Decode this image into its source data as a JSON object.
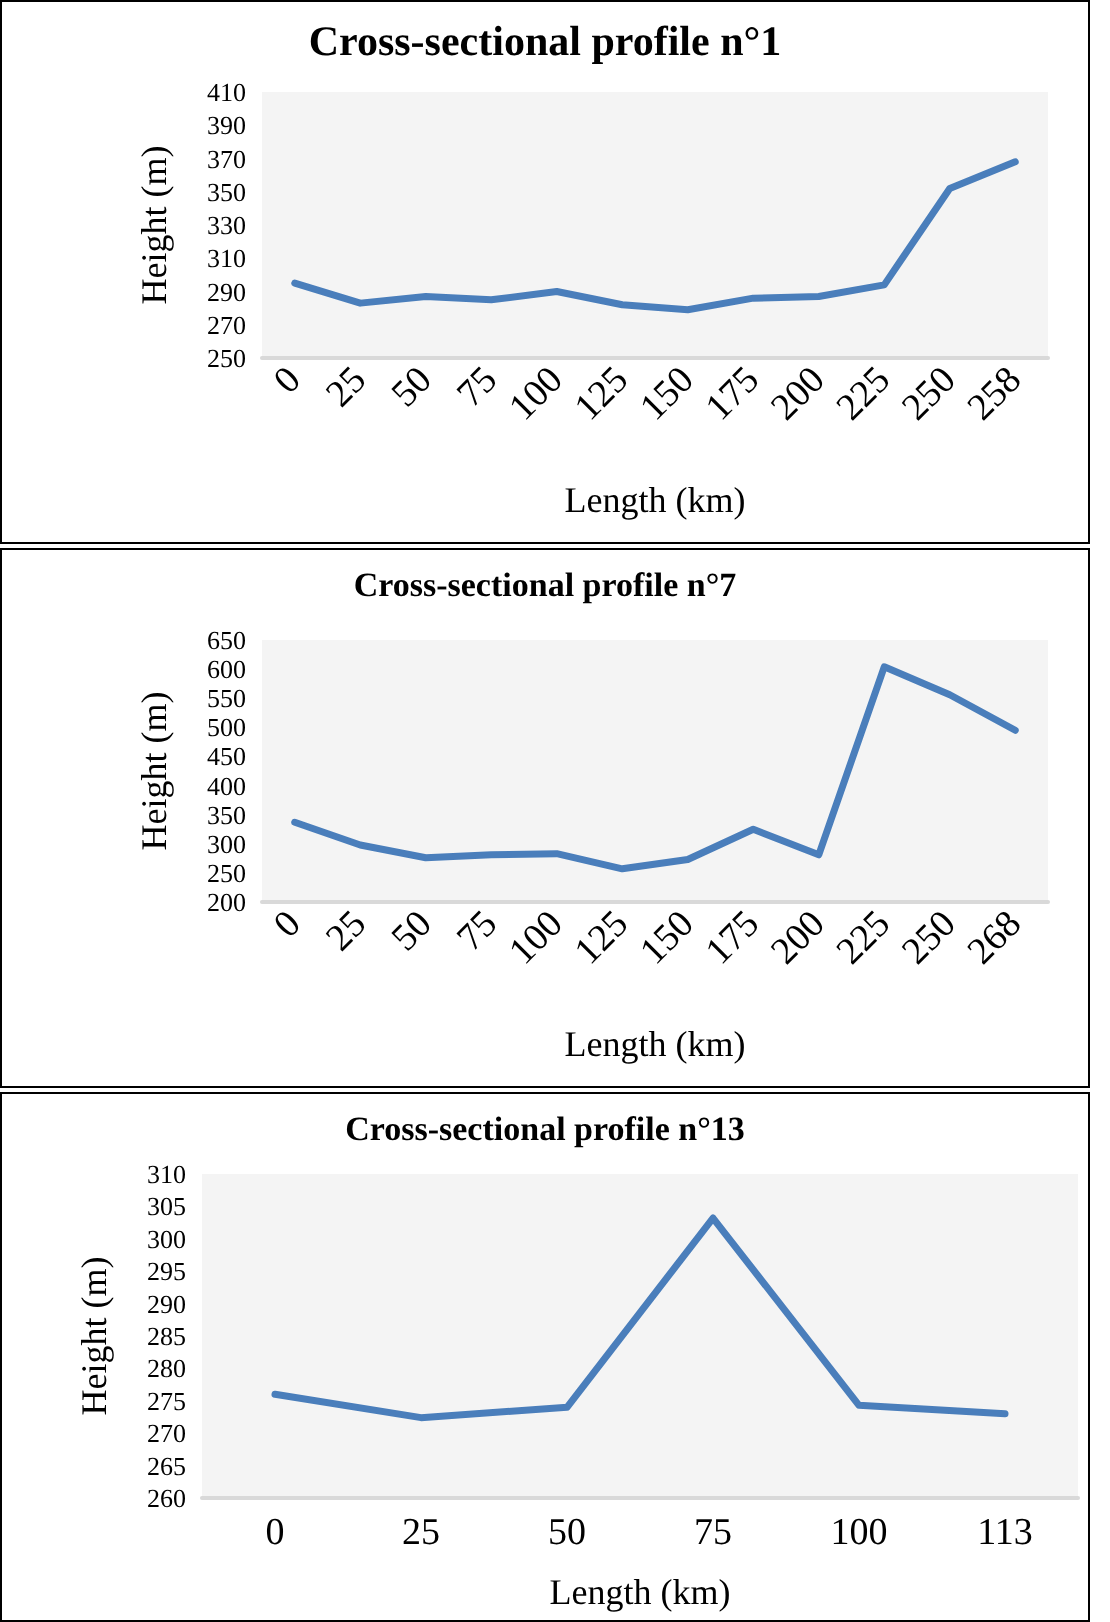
{
  "chart_data": [
    {
      "type": "line",
      "title": "Cross-sectional profile n°1",
      "xlabel": "Length (km)",
      "ylabel": "Height (m)",
      "categories": [
        "0",
        "25",
        "50",
        "75",
        "100",
        "125",
        "150",
        "175",
        "200",
        "225",
        "250",
        "258"
      ],
      "series": [
        {
          "color": "#4a7ebb",
          "values": [
            295,
            283,
            287,
            285,
            290,
            282,
            279,
            286,
            287,
            294,
            352,
            368
          ]
        }
      ],
      "ylim": [
        250,
        410
      ],
      "yticks": [
        250,
        270,
        290,
        310,
        330,
        350,
        370,
        390,
        410
      ],
      "grid": false,
      "marker": "none",
      "line_style": "solid"
    },
    {
      "type": "line",
      "title": "Cross-sectional profile n°7",
      "xlabel": "Length (km)",
      "ylabel": "Height (m)",
      "categories": [
        "0",
        "25",
        "50",
        "75",
        "100",
        "125",
        "150",
        "175",
        "200",
        "225",
        "250",
        "268"
      ],
      "series": [
        {
          "color": "#4a7ebb",
          "values": [
            337,
            298,
            276,
            281,
            283,
            257,
            273,
            325,
            281,
            604,
            556,
            495
          ]
        }
      ],
      "ylim": [
        200,
        650
      ],
      "yticks": [
        200,
        250,
        300,
        350,
        400,
        450,
        500,
        550,
        600,
        650
      ],
      "grid": false,
      "marker": "none",
      "line_style": "solid"
    },
    {
      "type": "line",
      "title": "Cross-sectional profile n°13",
      "xlabel": "Length (km)",
      "ylabel": "Height (m)",
      "categories": [
        "0",
        "25",
        "50",
        "75",
        "100",
        "113"
      ],
      "series": [
        {
          "color": "#4a7ebb",
          "values": [
            276,
            272.4,
            274,
            303.2,
            274.3,
            273
          ]
        }
      ],
      "ylim": [
        260,
        310
      ],
      "yticks": [
        260,
        265,
        270,
        275,
        280,
        285,
        290,
        295,
        300,
        305,
        310
      ],
      "grid": false,
      "marker": "none",
      "line_style": "solid"
    }
  ]
}
